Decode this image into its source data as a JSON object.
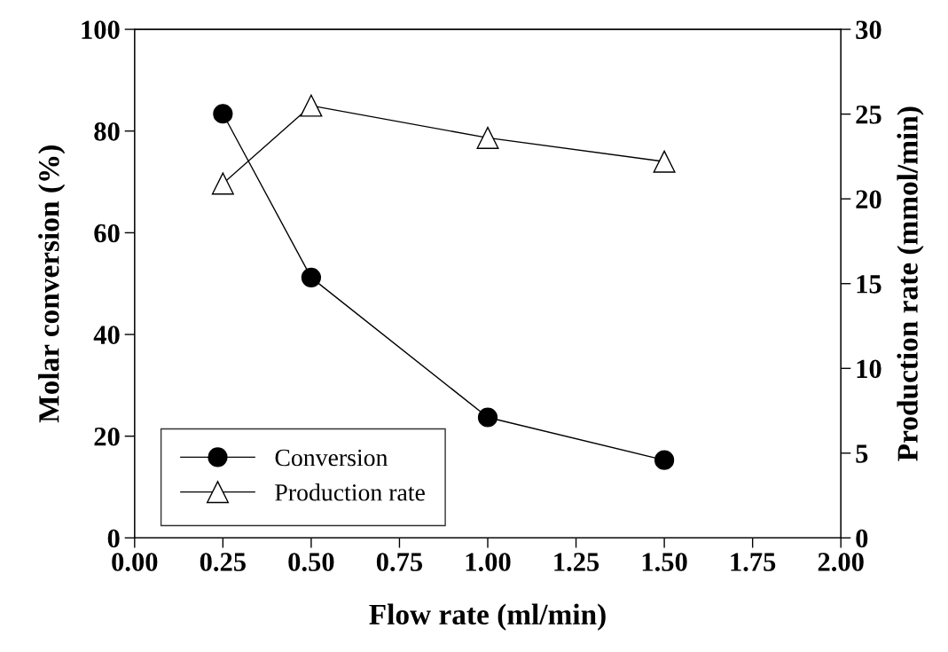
{
  "chart_data": {
    "type": "line",
    "xlabel": "Flow rate (ml/min)",
    "ylabel": "Molar conversion (%)",
    "y2label": "Production rate (mmol/min)",
    "x": [
      0.25,
      0.5,
      1.0,
      1.5
    ],
    "series": [
      {
        "name": "Conversion",
        "color": "#000000",
        "values": [
          83.4,
          51.2,
          23.7,
          15.3
        ],
        "marker": "circle"
      },
      {
        "name": "Production rate",
        "color": "#000000",
        "values": [
          20.9,
          25.5,
          23.6,
          22.2
        ],
        "marker": "triangle",
        "axis": "y2"
      }
    ],
    "xlim": [
      0,
      2
    ],
    "xticks": [
      {
        "value": 0,
        "label": "0.00"
      },
      {
        "value": 0.25,
        "label": "0.25"
      },
      {
        "value": 0.5,
        "label": "0.50"
      },
      {
        "value": 0.75,
        "label": "0.75"
      },
      {
        "value": 1.0,
        "label": "1.00"
      },
      {
        "value": 1.25,
        "label": "1.25"
      },
      {
        "value": 1.5,
        "label": "1.50"
      },
      {
        "value": 1.75,
        "label": "1.75"
      },
      {
        "value": 2.0,
        "label": "2.00"
      }
    ],
    "ylim": [
      0,
      100
    ],
    "yticks": [
      0,
      20,
      40,
      60,
      80,
      100
    ],
    "y2lim": [
      0,
      30
    ],
    "y2ticks": [
      0,
      5,
      10,
      15,
      20,
      25,
      30
    ],
    "legend": "bottom left",
    "grid": false,
    "line_style": "solid"
  }
}
